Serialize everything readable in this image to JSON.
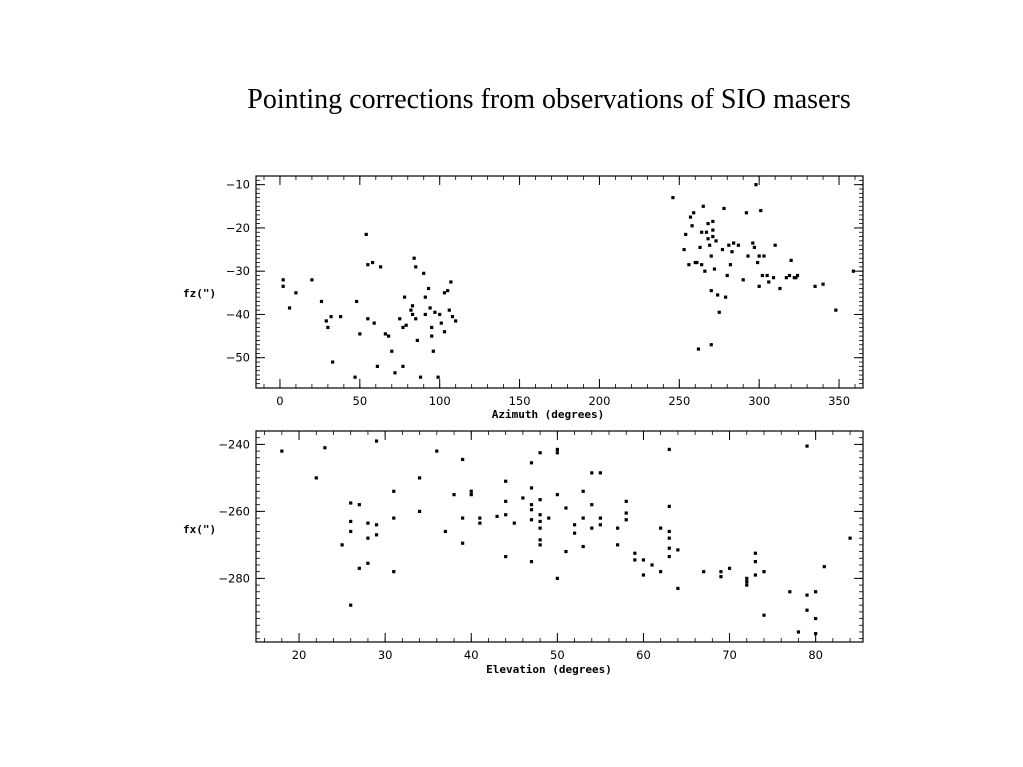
{
  "title": "Pointing corrections from observations of SIO masers",
  "chart_data": [
    {
      "type": "scatter",
      "xlabel": "Azimuth (degrees)",
      "ylabel": "fz(\")",
      "xlim": [
        -15,
        365
      ],
      "ylim": [
        -57,
        -8
      ],
      "xticks": [
        0,
        50,
        100,
        150,
        200,
        250,
        300,
        350
      ],
      "yticks": [
        -50,
        -40,
        -30,
        -20,
        -10
      ],
      "points": [
        [
          2,
          -32
        ],
        [
          2,
          -33.5
        ],
        [
          6,
          -38.5
        ],
        [
          10,
          -35
        ],
        [
          20,
          -32
        ],
        [
          26,
          -37
        ],
        [
          29,
          -41.5
        ],
        [
          30,
          -43
        ],
        [
          32,
          -40.5
        ],
        [
          33,
          -51
        ],
        [
          38,
          -40.5
        ],
        [
          47,
          -54.5
        ],
        [
          48,
          -37
        ],
        [
          50,
          -44.5
        ],
        [
          54,
          -21.5
        ],
        [
          55,
          -28.5
        ],
        [
          55,
          -41
        ],
        [
          58,
          -28
        ],
        [
          59,
          -42
        ],
        [
          61,
          -52
        ],
        [
          63,
          -29
        ],
        [
          66,
          -44.5
        ],
        [
          68,
          -45
        ],
        [
          70,
          -48.5
        ],
        [
          72,
          -53.5
        ],
        [
          75,
          -41
        ],
        [
          77,
          -43
        ],
        [
          77,
          -52
        ],
        [
          78,
          -36
        ],
        [
          79,
          -42.5
        ],
        [
          82,
          -39
        ],
        [
          83,
          -38
        ],
        [
          83,
          -40
        ],
        [
          84,
          -27
        ],
        [
          85,
          -29
        ],
        [
          85,
          -41
        ],
        [
          86,
          -46
        ],
        [
          88,
          -54.5
        ],
        [
          90,
          -30.5
        ],
        [
          91,
          -36
        ],
        [
          91,
          -40
        ],
        [
          93,
          -34
        ],
        [
          94,
          -38.5
        ],
        [
          95,
          -43
        ],
        [
          95,
          -45
        ],
        [
          96,
          -48.5
        ],
        [
          97,
          -39.5
        ],
        [
          99,
          -54.5
        ],
        [
          100,
          -40
        ],
        [
          101,
          -42
        ],
        [
          103,
          -44
        ],
        [
          103,
          -35
        ],
        [
          105,
          -34.5
        ],
        [
          106,
          -39
        ],
        [
          107,
          -32.5
        ],
        [
          108,
          -40.5
        ],
        [
          110,
          -41.5
        ],
        [
          246,
          -13
        ],
        [
          253,
          -25
        ],
        [
          254,
          -21.5
        ],
        [
          256,
          -28.5
        ],
        [
          257,
          -17.5
        ],
        [
          258,
          -19.5
        ],
        [
          259,
          -16.5
        ],
        [
          260,
          -28
        ],
        [
          261,
          -28
        ],
        [
          262,
          -48
        ],
        [
          263,
          -24.5
        ],
        [
          264,
          -21
        ],
        [
          264,
          -28.5
        ],
        [
          265,
          -15
        ],
        [
          266,
          -30
        ],
        [
          267,
          -21
        ],
        [
          268,
          -19
        ],
        [
          268,
          -22.5
        ],
        [
          269,
          -24
        ],
        [
          270,
          -34.5
        ],
        [
          270,
          -47
        ],
        [
          270,
          -26.5
        ],
        [
          271,
          -18.5
        ],
        [
          271,
          -20.5
        ],
        [
          271,
          -22
        ],
        [
          272,
          -29.5
        ],
        [
          273,
          -23
        ],
        [
          274,
          -35.5
        ],
        [
          275,
          -39.5
        ],
        [
          277,
          -25
        ],
        [
          278,
          -15.5
        ],
        [
          279,
          -36
        ],
        [
          280,
          -31
        ],
        [
          281,
          -24
        ],
        [
          282,
          -28.5
        ],
        [
          283,
          -25.5
        ],
        [
          284,
          -23.5
        ],
        [
          287,
          -24
        ],
        [
          290,
          -32
        ],
        [
          292,
          -16.5
        ],
        [
          293,
          -26.5
        ],
        [
          296,
          -23.5
        ],
        [
          297,
          -24.5
        ],
        [
          298,
          -10
        ],
        [
          299,
          -28
        ],
        [
          300,
          -26.5
        ],
        [
          300,
          -33.5
        ],
        [
          301,
          -16
        ],
        [
          302,
          -31
        ],
        [
          303,
          -26.5
        ],
        [
          305,
          -31
        ],
        [
          306,
          -32.5
        ],
        [
          309,
          -31.5
        ],
        [
          310,
          -24
        ],
        [
          313,
          -34
        ],
        [
          317,
          -31.5
        ],
        [
          319,
          -31
        ],
        [
          320,
          -27.5
        ],
        [
          322,
          -31.5
        ],
        [
          323,
          -31.5
        ],
        [
          324,
          -31
        ],
        [
          335,
          -33.5
        ],
        [
          340,
          -33
        ],
        [
          348,
          -39
        ],
        [
          359,
          -30
        ]
      ]
    },
    {
      "type": "scatter",
      "xlabel": "Elevation (degrees)",
      "ylabel": "fx(\")",
      "xlim": [
        15,
        85.5
      ],
      "ylim": [
        -299,
        -236
      ],
      "xticks": [
        20,
        30,
        40,
        50,
        60,
        70,
        80
      ],
      "yticks": [
        -280,
        -260,
        -240
      ],
      "points": [
        [
          18,
          -242
        ],
        [
          22,
          -250
        ],
        [
          23,
          -241
        ],
        [
          25,
          -270
        ],
        [
          26,
          -257.5
        ],
        [
          26,
          -263
        ],
        [
          26,
          -266
        ],
        [
          26,
          -288
        ],
        [
          27,
          -258
        ],
        [
          27,
          -277
        ],
        [
          28,
          -263.5
        ],
        [
          28,
          -268
        ],
        [
          28,
          -275.5
        ],
        [
          29,
          -239
        ],
        [
          29,
          -264
        ],
        [
          29,
          -267
        ],
        [
          31,
          -254
        ],
        [
          31,
          -262
        ],
        [
          31,
          -278
        ],
        [
          34,
          -250
        ],
        [
          34,
          -260
        ],
        [
          36,
          -242
        ],
        [
          37,
          -266
        ],
        [
          38,
          -255
        ],
        [
          39,
          -244.5
        ],
        [
          39,
          -262
        ],
        [
          39,
          -269.5
        ],
        [
          40,
          -255
        ],
        [
          40,
          -254
        ],
        [
          41,
          -263.5
        ],
        [
          41,
          -262
        ],
        [
          43,
          -261.5
        ],
        [
          44,
          -251
        ],
        [
          44,
          -257
        ],
        [
          44,
          -261
        ],
        [
          44,
          -273.5
        ],
        [
          45,
          -263.5
        ],
        [
          46,
          -256
        ],
        [
          47,
          -245.5
        ],
        [
          47,
          -253
        ],
        [
          47,
          -258
        ],
        [
          47,
          -259.5
        ],
        [
          47,
          -262.5
        ],
        [
          47,
          -275
        ],
        [
          48,
          -242.5
        ],
        [
          48,
          -256.5
        ],
        [
          48,
          -261
        ],
        [
          48,
          -263
        ],
        [
          48,
          -265
        ],
        [
          48,
          -268.5
        ],
        [
          48,
          -270
        ],
        [
          49,
          -262
        ],
        [
          50,
          -241.5
        ],
        [
          50,
          -242.5
        ],
        [
          50,
          -255
        ],
        [
          50,
          -280
        ],
        [
          51,
          -259
        ],
        [
          51,
          -272
        ],
        [
          52,
          -264
        ],
        [
          52,
          -266.5
        ],
        [
          53,
          -254
        ],
        [
          53,
          -262
        ],
        [
          53,
          -270.5
        ],
        [
          54,
          -258
        ],
        [
          54,
          -265
        ],
        [
          54,
          -248.5
        ],
        [
          55,
          -262
        ],
        [
          55,
          -248.5
        ],
        [
          55,
          -264
        ],
        [
          57,
          -265
        ],
        [
          57,
          -270
        ],
        [
          58,
          -257
        ],
        [
          58,
          -260.5
        ],
        [
          58,
          -262.5
        ],
        [
          59,
          -272.5
        ],
        [
          59,
          -274.5
        ],
        [
          60,
          -274.5
        ],
        [
          60,
          -279
        ],
        [
          61,
          -276
        ],
        [
          62,
          -265
        ],
        [
          62,
          -278
        ],
        [
          63,
          -241.5
        ],
        [
          63,
          -258.5
        ],
        [
          63,
          -266
        ],
        [
          63,
          -268
        ],
        [
          63,
          -271
        ],
        [
          63,
          -273.5
        ],
        [
          64,
          -271.5
        ],
        [
          64,
          -283
        ],
        [
          67,
          -278
        ],
        [
          69,
          -278
        ],
        [
          69,
          -279.5
        ],
        [
          70,
          -277
        ],
        [
          72,
          -280
        ],
        [
          72,
          -281
        ],
        [
          72,
          -282
        ],
        [
          73,
          -272.5
        ],
        [
          73,
          -275
        ],
        [
          73,
          -279
        ],
        [
          74,
          -278
        ],
        [
          74,
          -291
        ],
        [
          77,
          -284
        ],
        [
          78,
          -296
        ],
        [
          79,
          -240.5
        ],
        [
          79,
          -285
        ],
        [
          79,
          -289.5
        ],
        [
          80,
          -284
        ],
        [
          80,
          -292
        ],
        [
          80,
          -296.5
        ],
        [
          81,
          -276.5
        ],
        [
          84,
          -268
        ]
      ]
    }
  ]
}
